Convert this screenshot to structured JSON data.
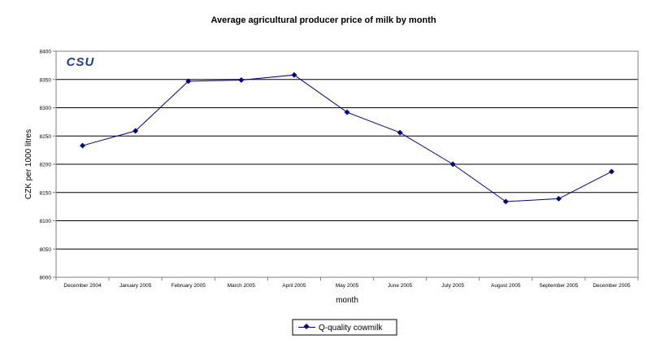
{
  "chart_data": {
    "type": "line",
    "title": "Average agricultural producer price of milk by month",
    "xlabel": "month",
    "ylabel": "CZK per 1000 litres",
    "ylim": [
      8000,
      8400
    ],
    "yticks": [
      8000,
      8050,
      8100,
      8150,
      8200,
      8250,
      8300,
      8350,
      8400
    ],
    "grid": true,
    "legend_position": "bottom-center",
    "categories": [
      "December 2004",
      "January 2005",
      "February 2005",
      "March 2005",
      "April 2005",
      "May 2005",
      "June 2005",
      "July 2005",
      "August 2005",
      "September 2005",
      "December 2005"
    ],
    "series": [
      {
        "name": "Q-quality cowmilk",
        "color": "#000080",
        "values": [
          8233,
          8259,
          8347,
          8349,
          8358,
          8292,
          8256,
          8200,
          8134,
          8139,
          8187
        ]
      }
    ],
    "logo": "CSU"
  }
}
